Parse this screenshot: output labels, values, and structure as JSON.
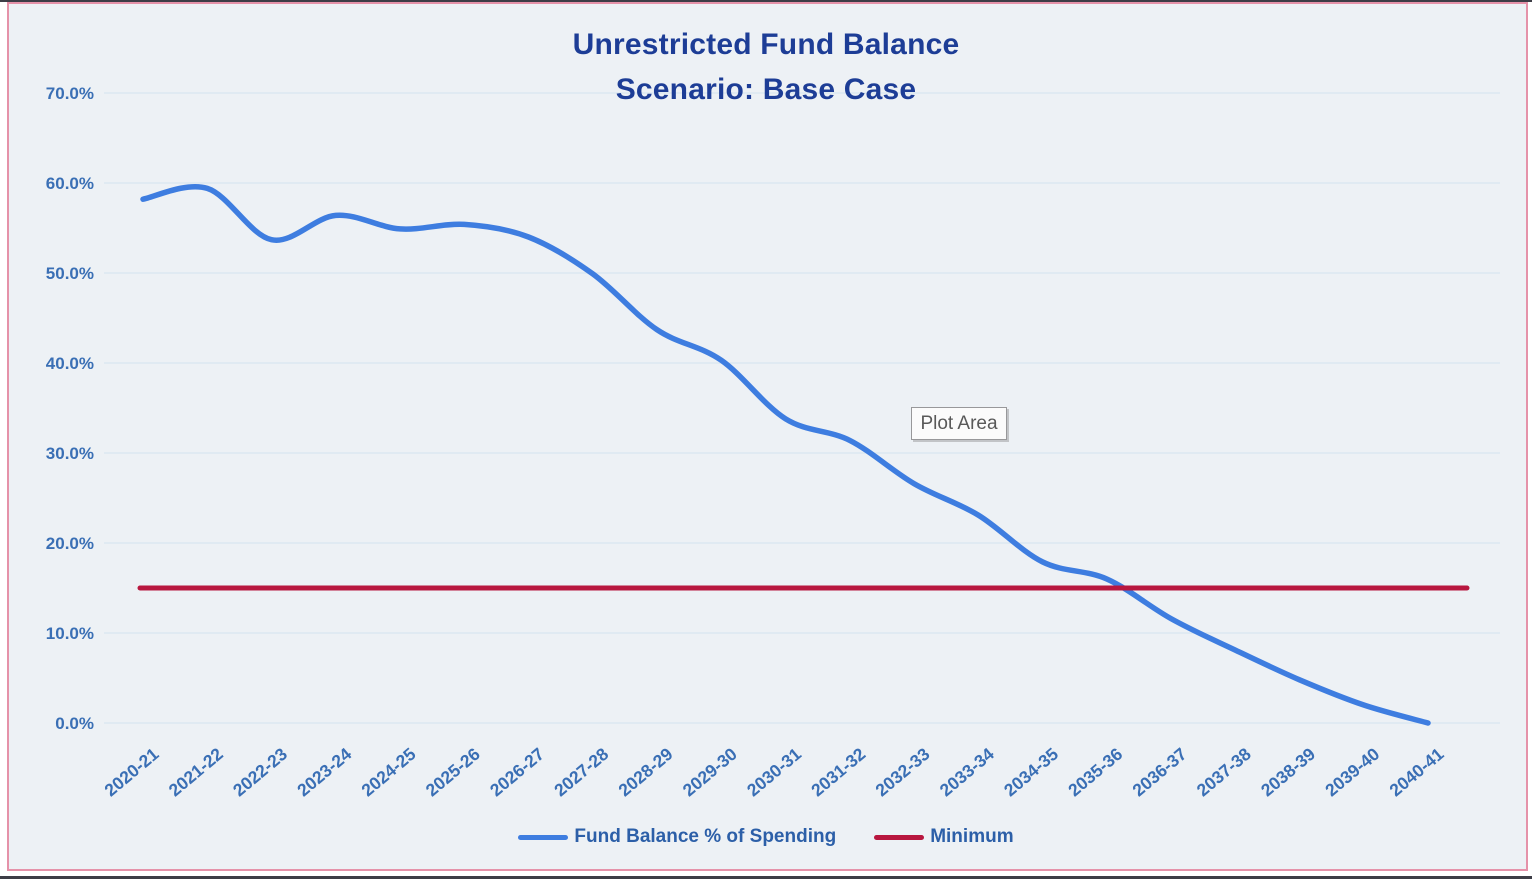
{
  "title": {
    "line1": "Unrestricted Fund Balance",
    "line2": "Scenario: Base Case"
  },
  "plot_area_label": "Plot Area",
  "chart_data": {
    "type": "line",
    "title": "Unrestricted Fund Balance",
    "subtitle": "Scenario: Base Case",
    "categories": [
      "2020-21",
      "2021-22",
      "2022-23",
      "2023-24",
      "2024-25",
      "2025-26",
      "2026-27",
      "2027-28",
      "2028-29",
      "2029-30",
      "2030-31",
      "2031-32",
      "2032-33",
      "2033-34",
      "2034-35",
      "2035-36",
      "2036-37",
      "2037-38",
      "2038-39",
      "2039-40",
      "2040-41"
    ],
    "series": [
      {
        "name": "Fund Balance % of Spending",
        "color": "#3e7de0",
        "line_style": "smooth",
        "values": [
          58.2,
          59.4,
          53.7,
          56.4,
          54.9,
          55.4,
          54.0,
          49.9,
          43.7,
          40.3,
          33.8,
          31.4,
          26.6,
          23.1,
          17.9,
          16.0,
          11.6,
          8.1,
          4.8,
          2.0,
          0.0
        ]
      },
      {
        "name": "Minimum",
        "color": "#b8173f",
        "line_style": "straight",
        "values": [
          15,
          15,
          15,
          15,
          15,
          15,
          15,
          15,
          15,
          15,
          15,
          15,
          15,
          15,
          15,
          15,
          15,
          15,
          15,
          15,
          15
        ]
      }
    ],
    "xlabel": "",
    "ylabel": "",
    "ylim": [
      0,
      70
    ],
    "y_ticks": [
      "0.0%",
      "10.0%",
      "20.0%",
      "30.0%",
      "40.0%",
      "50.0%",
      "60.0%",
      "70.0%"
    ],
    "y_tick_format": "percent",
    "grid": "horizontal",
    "legend_position": "bottom"
  },
  "colors": {
    "title_text": "#1d3d96",
    "axis_text": "#3a6fb5",
    "legend_text": "#2c5fa8",
    "frame_border": "#e592a9",
    "plot_background": "#edf1f5",
    "gridline": "#dbe7f2",
    "fund_balance_line": "#3e7de0",
    "minimum_line": "#b8173f"
  }
}
